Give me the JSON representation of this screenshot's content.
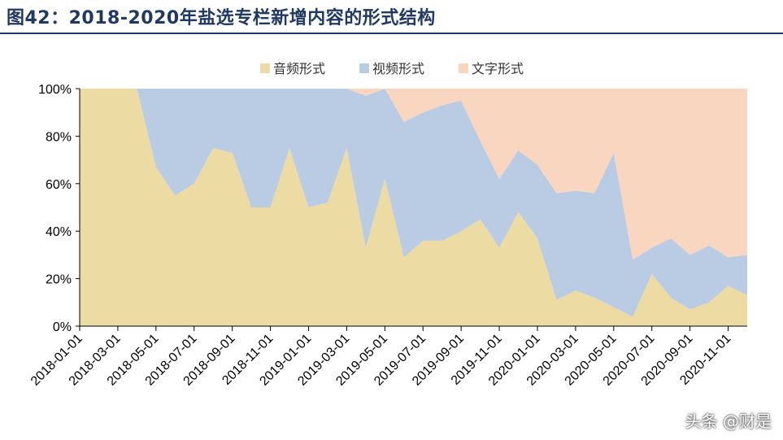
{
  "figure": {
    "title": "图42：2018-2020年盐选专栏新增内容的形式结构",
    "watermark": "头条 @财是"
  },
  "colors": {
    "audio": "#ecdca3",
    "video": "#b9cce4",
    "text": "#f9d6bf",
    "title": "#1f3864"
  },
  "chart_data": {
    "type": "area",
    "stacked": true,
    "percent": true,
    "ylim": [
      0,
      100
    ],
    "yticks": [
      "0%",
      "20%",
      "40%",
      "60%",
      "80%",
      "100%"
    ],
    "legend": {
      "placement": "top-center",
      "entries": [
        "音频形式",
        "视频形式",
        "文字形式"
      ]
    },
    "x": [
      "2018-01-01",
      "2018-02-01",
      "2018-03-01",
      "2018-04-01",
      "2018-05-01",
      "2018-06-01",
      "2018-07-01",
      "2018-08-01",
      "2018-09-01",
      "2018-10-01",
      "2018-11-01",
      "2018-12-01",
      "2019-01-01",
      "2019-02-01",
      "2019-03-01",
      "2019-04-01",
      "2019-05-01",
      "2019-06-01",
      "2019-07-01",
      "2019-08-01",
      "2019-09-01",
      "2019-10-01",
      "2019-11-01",
      "2019-12-01",
      "2020-01-01",
      "2020-02-01",
      "2020-03-01",
      "2020-04-01",
      "2020-05-01",
      "2020-06-01",
      "2020-07-01",
      "2020-08-01",
      "2020-09-01",
      "2020-10-01",
      "2020-11-01",
      "2020-12-01"
    ],
    "xticks": [
      "2018-01-01",
      "2018-03-01",
      "2018-05-01",
      "2018-07-01",
      "2018-09-01",
      "2018-11-01",
      "2019-01-01",
      "2019-03-01",
      "2019-05-01",
      "2019-07-01",
      "2019-09-01",
      "2019-11-01",
      "2020-01-01",
      "2020-03-01",
      "2020-05-01",
      "2020-07-01",
      "2020-09-01",
      "2020-11-01"
    ],
    "series": [
      {
        "name": "音频形式",
        "values": [
          100,
          100,
          100,
          100,
          67,
          55,
          60,
          75,
          73,
          50,
          50,
          75,
          50,
          52,
          75,
          33,
          62,
          29,
          36,
          36,
          40,
          45,
          33,
          48,
          37,
          11,
          15,
          12,
          8,
          4,
          22,
          12,
          7,
          10,
          17,
          13
        ]
      },
      {
        "name": "视频形式",
        "values": [
          0,
          0,
          0,
          0,
          33,
          45,
          40,
          25,
          27,
          50,
          50,
          25,
          50,
          48,
          25,
          64,
          38,
          57,
          54,
          57,
          55,
          33,
          29,
          26,
          31,
          45,
          42,
          44,
          65,
          24,
          11,
          25,
          23,
          24,
          12,
          17
        ]
      },
      {
        "name": "文字形式",
        "values": [
          0,
          0,
          0,
          0,
          0,
          0,
          0,
          0,
          0,
          0,
          0,
          0,
          0,
          0,
          0,
          3,
          0,
          14,
          10,
          7,
          5,
          22,
          38,
          26,
          32,
          44,
          43,
          44,
          27,
          72,
          67,
          63,
          70,
          66,
          71,
          70
        ]
      }
    ]
  }
}
